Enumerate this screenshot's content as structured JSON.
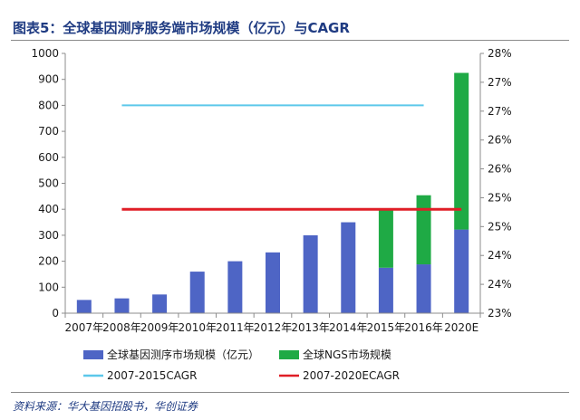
{
  "title": "图表5：全球基因测序服务端市场规模（亿元）与CAGR",
  "source": "资料来源：华大基因招股书，华创证券",
  "colors": {
    "base": "#4e65c5",
    "ngs": "#1faa45",
    "cagr1": "#5cc8ea",
    "cagr2": "#e01e26"
  },
  "chart_data": {
    "type": "bar",
    "stacked": true,
    "categories": [
      "2007年",
      "2008年",
      "2009年",
      "2010年",
      "2011年",
      "2012年",
      "2013年",
      "2014年",
      "2015年",
      "2016年",
      "2020E"
    ],
    "series": [
      {
        "name": "全球基因测序市场规模（亿元）",
        "values": [
          51,
          57,
          72,
          160,
          200,
          234,
          300,
          350,
          175,
          188,
          322
        ]
      },
      {
        "name": "全球NGS市场规模",
        "values": [
          0,
          0,
          0,
          0,
          0,
          0,
          0,
          0,
          221,
          266,
          603
        ]
      }
    ],
    "lines": [
      {
        "name": "2007-2015CAGR",
        "value": 27.0,
        "x_range": [
          "2008年",
          "2016年"
        ]
      },
      {
        "name": "2007-2020ECAGR",
        "value": 25.0,
        "x_range": [
          "2008年",
          "2020E"
        ]
      }
    ],
    "y_left": {
      "min": 0,
      "max": 1000,
      "ticks": [
        "0",
        "100",
        "200",
        "300",
        "400",
        "500",
        "600",
        "700",
        "800",
        "900",
        "1000"
      ]
    },
    "y_right": {
      "min": 23.0,
      "max": 28.0,
      "ticks": [
        "23%",
        "24%",
        "24%",
        "25%",
        "25%",
        "26%",
        "26%",
        "27%",
        "27%",
        "28%"
      ]
    },
    "legend_position": "bottom"
  }
}
